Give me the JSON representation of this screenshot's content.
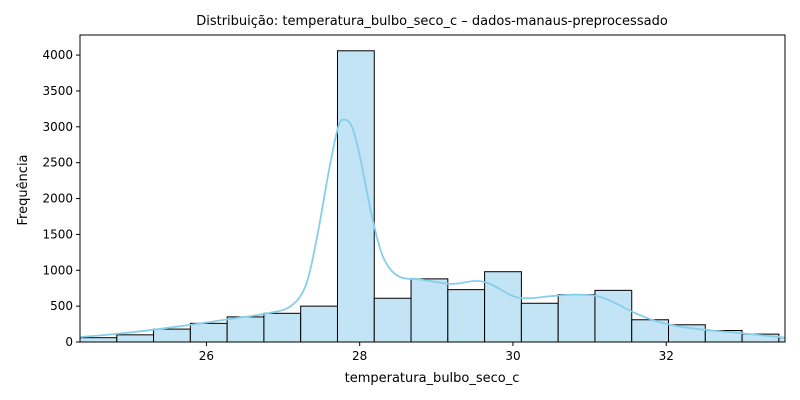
{
  "chart_data": {
    "type": "bar",
    "title": "Distribuição: temperatura_bulbo_seco_c – dados-manaus-preprocessado",
    "xlabel": "temperatura_bulbo_seco_c",
    "ylabel": "Frequência",
    "xlim": [
      24.35,
      33.55
    ],
    "ylim": [
      0,
      4280
    ],
    "xticks": [
      26,
      28,
      30,
      32
    ],
    "yticks": [
      0,
      500,
      1000,
      1500,
      2000,
      2500,
      3000,
      3500,
      4000
    ],
    "bin_edges": [
      24.35,
      24.83,
      25.31,
      25.79,
      26.27,
      26.75,
      27.23,
      27.71,
      28.19,
      28.67,
      29.15,
      29.63,
      30.11,
      30.59,
      31.07,
      31.55,
      32.03,
      32.51,
      32.99,
      33.47,
      33.55
    ],
    "counts": [
      60,
      100,
      180,
      260,
      350,
      400,
      500,
      4060,
      610,
      880,
      730,
      980,
      540,
      660,
      720,
      310,
      240,
      160,
      110,
      60
    ],
    "kde": {
      "x": [
        24.35,
        24.8,
        25.3,
        25.8,
        26.3,
        26.8,
        27.1,
        27.3,
        27.45,
        27.6,
        27.72,
        27.8,
        27.9,
        28.0,
        28.15,
        28.3,
        28.5,
        28.8,
        29.2,
        29.5,
        29.7,
        30.0,
        30.2,
        30.5,
        30.8,
        31.1,
        31.3,
        31.6,
        31.9,
        32.2,
        32.6,
        33.0,
        33.55
      ],
      "y": [
        70,
        110,
        170,
        240,
        320,
        400,
        500,
        800,
        1500,
        2400,
        3000,
        3100,
        3000,
        2600,
        1800,
        1200,
        920,
        870,
        810,
        850,
        810,
        640,
        610,
        640,
        660,
        640,
        560,
        400,
        280,
        210,
        160,
        120,
        60
      ]
    },
    "colors": {
      "bar_fill": "#c3e4f4",
      "bar_edge": "#000000",
      "kde_line": "#87ceeb"
    },
    "grid": false,
    "legend": false
  }
}
